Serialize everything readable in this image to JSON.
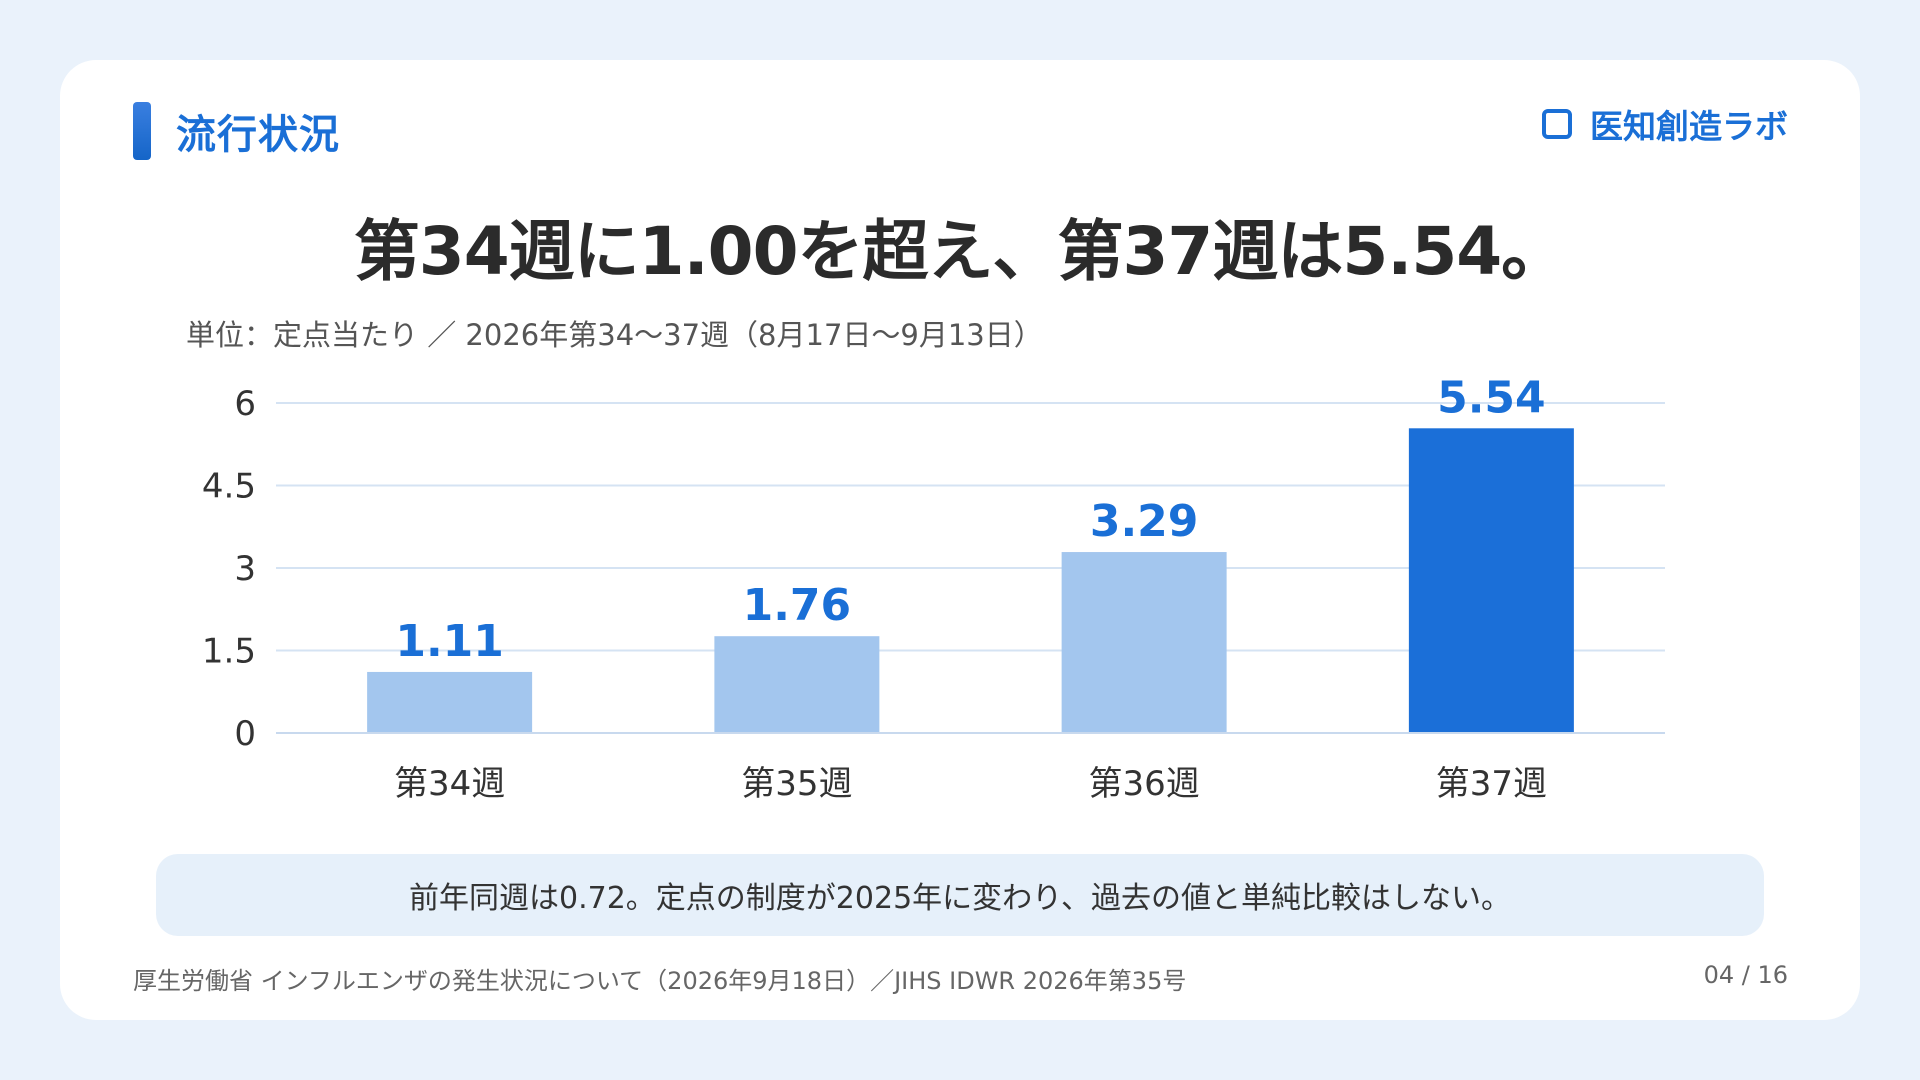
{
  "section": {
    "title": "流行状況"
  },
  "brand": {
    "name": "医知創造ラボ",
    "icon": "square-outline-icon"
  },
  "headline": "第34週に1.00を超え、第37週は5.54。",
  "unit_note": "単位：定点当たり ／ 2026年第34〜37週（8月17日〜9月13日）",
  "note": "前年同週は0.72。定点の制度が2025年に変わり、過去の値と単純比較はしない。",
  "source": "厚生労働省 インフルエンザの発生状況について（2026年9月18日）／JIHS IDWR 2026年第35号",
  "page": "04 / 16",
  "colors": {
    "accent": "#1a6fd6",
    "bar_highlight": "#1b6fd8",
    "bar_normal": "#a3c6ee",
    "label": "#1a6fd6",
    "grid": "#d5e3f3",
    "background": "#eaf2fb"
  },
  "chart_data": {
    "type": "bar",
    "categories": [
      "第34週",
      "第35週",
      "第36週",
      "第37週"
    ],
    "values": [
      1.11,
      1.76,
      3.29,
      5.54
    ],
    "data_labels": [
      "1.11",
      "1.76",
      "3.29",
      "5.54"
    ],
    "highlight_index": 3,
    "ylim": [
      0,
      6
    ],
    "yticks": [
      0,
      1.5,
      3,
      4.5,
      6
    ],
    "ytick_labels": [
      "0",
      "1.5",
      "3",
      "4.5",
      "6"
    ],
    "grid": true,
    "title": "",
    "xlabel": "",
    "ylabel": ""
  }
}
